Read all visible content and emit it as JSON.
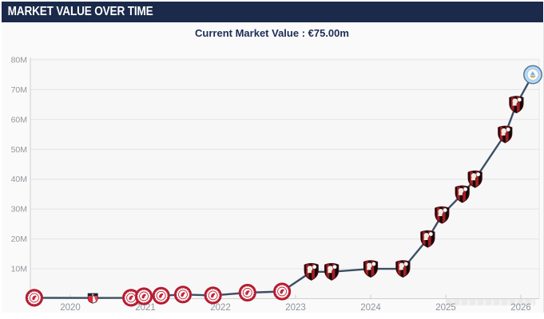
{
  "header": {
    "title": "MARKET VALUE OVER TIME",
    "bg_color": "#1b2a4a",
    "text_color": "#ffffff"
  },
  "summary": {
    "label": "Current Market Value : €75.00m",
    "text_color": "#1e2d55"
  },
  "watermark": {
    "legible": false
  },
  "chart_data": {
    "type": "line",
    "title": "Market Value Over Time",
    "xlabel": "",
    "ylabel": "",
    "unit": "€ million",
    "grid": "horizontal",
    "legend": "none",
    "xlim": [
      2019.47,
      2026.25
    ],
    "ylim": [
      0,
      85
    ],
    "x_tick_labels": [
      "2020",
      "2021",
      "2022",
      "2023",
      "2024",
      "2025",
      "2026"
    ],
    "x_tick_years": [
      2020,
      2021,
      2022,
      2023,
      2024,
      2025,
      2026
    ],
    "y_tick_labels": [
      "10M",
      "20M",
      "30M",
      "40M",
      "50M",
      "60M",
      "70M",
      "80M"
    ],
    "y_tick_values": [
      10,
      20,
      30,
      40,
      50,
      60,
      70,
      80
    ],
    "line_color": "#3c4f63",
    "grid_color": "#e4e4e4",
    "axis_color": "#cfcfcf",
    "plot_bg": "#f7f7f8",
    "series": [
      {
        "name": "Market value",
        "points": [
          {
            "x": 2019.52,
            "value": 0.3,
            "club": "bristol-city"
          },
          {
            "x": 2020.3,
            "value": 0.25,
            "club": "sunderland"
          },
          {
            "x": 2020.81,
            "value": 0.3,
            "club": "bristol-city"
          },
          {
            "x": 2020.98,
            "value": 0.8,
            "club": "bristol-city"
          },
          {
            "x": 2021.21,
            "value": 1.0,
            "club": "bristol-city"
          },
          {
            "x": 2021.5,
            "value": 1.4,
            "club": "bristol-city"
          },
          {
            "x": 2021.9,
            "value": 1.1,
            "club": "bristol-city"
          },
          {
            "x": 2022.36,
            "value": 2.0,
            "club": "bristol-city"
          },
          {
            "x": 2022.82,
            "value": 2.4,
            "club": "bristol-city"
          },
          {
            "x": 2023.21,
            "value": 9.0,
            "club": "bournemouth"
          },
          {
            "x": 2023.48,
            "value": 9.0,
            "club": "bournemouth"
          },
          {
            "x": 2024.0,
            "value": 10.0,
            "club": "bournemouth"
          },
          {
            "x": 2024.43,
            "value": 10.0,
            "club": "bournemouth"
          },
          {
            "x": 2024.76,
            "value": 20.0,
            "club": "bournemouth"
          },
          {
            "x": 2024.95,
            "value": 28.0,
            "club": "bournemouth"
          },
          {
            "x": 2025.22,
            "value": 35.0,
            "club": "bournemouth"
          },
          {
            "x": 2025.39,
            "value": 40.0,
            "club": "bournemouth"
          },
          {
            "x": 2025.79,
            "value": 55.0,
            "club": "bournemouth"
          },
          {
            "x": 2025.94,
            "value": 65.0,
            "club": "bournemouth"
          },
          {
            "x": 2026.16,
            "value": 75.0,
            "club": "man-city"
          }
        ]
      }
    ],
    "clubs": {
      "bristol-city": {
        "name": "Bristol City",
        "primary": "#c5273b",
        "secondary": "#ffffff"
      },
      "sunderland": {
        "name": "Sunderland",
        "primary": "#e6273c",
        "secondary": "#1f1f38",
        "accent": "#e3b53e"
      },
      "bournemouth": {
        "name": "AFC Bournemouth",
        "primary": "#a41e23",
        "secondary": "#15090a"
      },
      "man-city": {
        "name": "Manchester City",
        "primary": "#b9d9f2",
        "secondary": "#55779c",
        "accent": "#c9a44a"
      }
    }
  }
}
